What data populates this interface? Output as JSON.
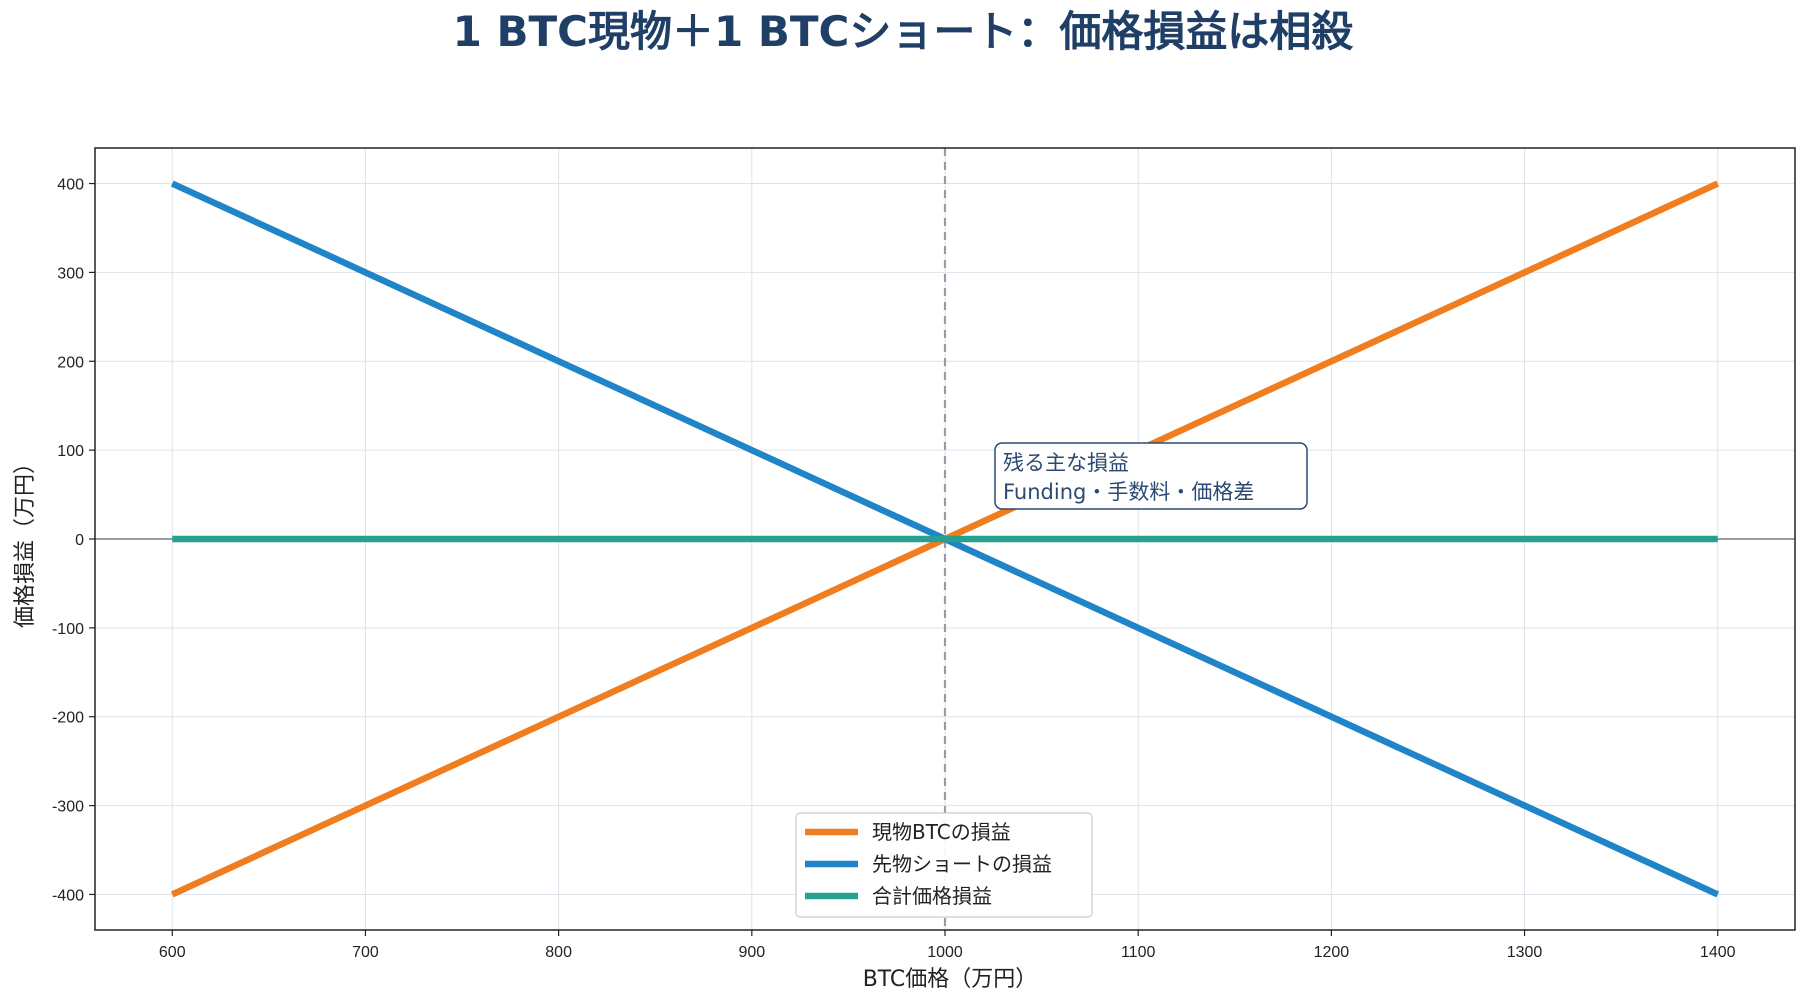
{
  "chart_data": {
    "type": "line",
    "title": "1 BTC現物＋1 BTCショート：価格損益は相殺",
    "xlabel": "BTC価格（万円）",
    "ylabel": "価格損益（万円）",
    "x": [
      600,
      1400
    ],
    "xlim": [
      560,
      1440
    ],
    "ylim": [
      -440,
      440
    ],
    "xticks": [
      600,
      700,
      800,
      900,
      1000,
      1100,
      1200,
      1300,
      1400
    ],
    "yticks": [
      400,
      300,
      200,
      100,
      0,
      -100,
      -200,
      -300,
      -400
    ],
    "grid": true,
    "legend_position": "bottom-center",
    "series": [
      {
        "name": "現物BTCの損益",
        "values": [
          -400,
          400
        ],
        "color": "#f07d20"
      },
      {
        "name": "先物ショートの損益",
        "values": [
          400,
          -400
        ],
        "color": "#1f84c8"
      },
      {
        "name": "合計価格損益",
        "values": [
          0,
          0
        ],
        "color": "#28a08e"
      }
    ],
    "reference_lines": {
      "vertical_x": 1000,
      "horizontal_y": 0
    },
    "annotation": {
      "lines": [
        "残る主な損益",
        "Funding・手数料・価格差"
      ],
      "anchor_x": 1025,
      "anchor_y": 72
    }
  },
  "colors": {
    "title": "#1f3f66",
    "grid": "#dde3ea",
    "vline": "#9a9aa8",
    "zero_line": "#5a6070",
    "annot_border": "#2b4a73"
  }
}
